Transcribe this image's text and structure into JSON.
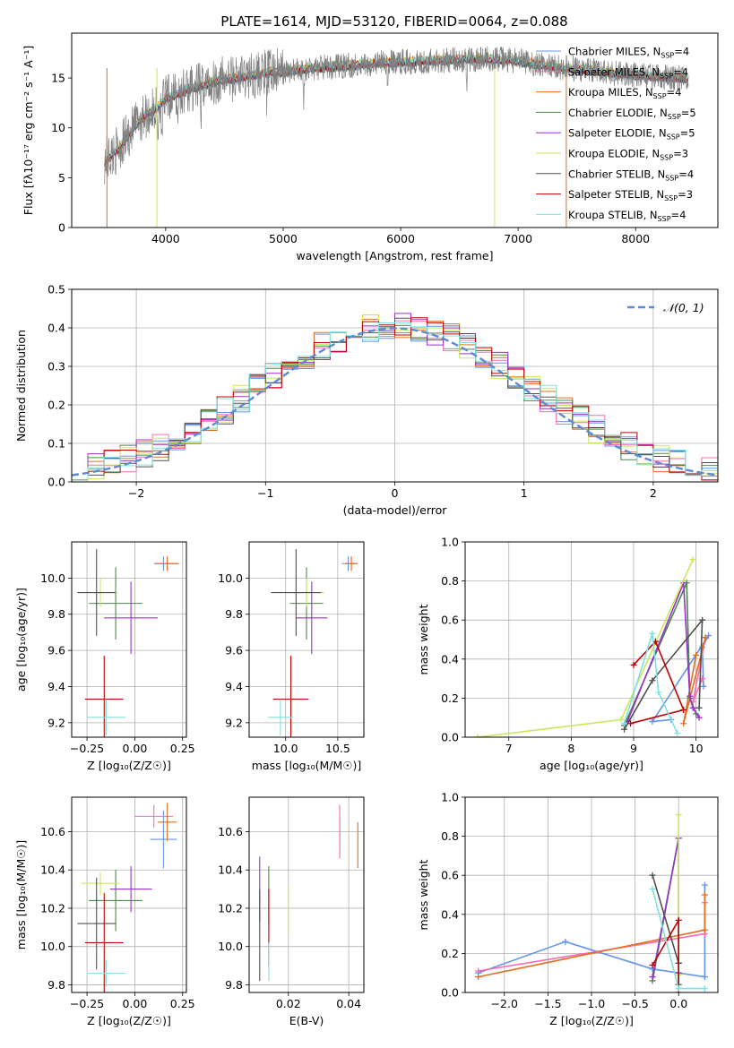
{
  "figure": {
    "title": "PLATE=1614, MJD=53120, FIBERID=0064, z=0.088"
  },
  "chart_data": [
    {
      "id": "spectrum",
      "type": "line",
      "xlabel": "wavelength [Angstrom, rest frame]",
      "ylabel": "Flux [fλ10⁻¹⁷ erg cm⁻² s⁻¹ A⁻¹]",
      "xlim": [
        3200,
        8700
      ],
      "ylim": [
        0,
        19.5
      ],
      "xticks": [
        4000,
        5000,
        6000,
        7000,
        8000
      ],
      "yticks": [
        0,
        5,
        10,
        15
      ],
      "grid": false,
      "legend_position": "right",
      "data_curve": {
        "name": "data",
        "color": "#808080",
        "x": [
          3480,
          3600,
          3700,
          3800,
          3900,
          4000,
          4100,
          4200,
          4300,
          4400,
          4500,
          4600,
          4700,
          4800,
          4900,
          5000,
          5200,
          5400,
          5600,
          5800,
          6000,
          6200,
          6400,
          6600,
          6800,
          7000,
          7200,
          7400,
          7600,
          7800,
          8000,
          8200,
          8400
        ],
        "y": [
          6.7,
          7.9,
          9.6,
          11.1,
          11.7,
          12.9,
          13.4,
          13.9,
          14.2,
          14.6,
          14.9,
          15.0,
          15.2,
          15.4,
          15.6,
          15.6,
          15.9,
          16.1,
          16.3,
          16.5,
          16.6,
          16.7,
          16.8,
          16.9,
          16.9,
          16.7,
          16.3,
          16.0,
          15.8,
          15.5,
          15.3,
          15.1,
          15.0
        ]
      },
      "series": [
        {
          "name": "Chabrier MILES, N",
          "sub": "SSP",
          "suffix": "=4",
          "color": "#6495ed"
        },
        {
          "name": "Salpeter MILES, N",
          "sub": "SSP",
          "suffix": "=4",
          "color": "#ff69b4"
        },
        {
          "name": "Kroupa MILES, N",
          "sub": "SSP",
          "suffix": "=4",
          "color": "#e07020"
        },
        {
          "name": "Chabrier ELODIE, N",
          "sub": "SSP",
          "suffix": "=5",
          "color": "#4a8a4a"
        },
        {
          "name": "Salpeter ELODIE, N",
          "sub": "SSP",
          "suffix": "=5",
          "color": "#9932cc"
        },
        {
          "name": "Kroupa ELODIE, N",
          "sub": "SSP",
          "suffix": "=3",
          "color": "#c8e85a"
        },
        {
          "name": "Chabrier STELIB, N",
          "sub": "SSP",
          "suffix": "=4",
          "color": "#505050"
        },
        {
          "name": "Salpeter STELIB, N",
          "sub": "SSP",
          "suffix": "=3",
          "color": "#c00000"
        },
        {
          "name": "Kroupa STELIB, N",
          "sub": "SSP",
          "suffix": "=4",
          "color": "#80e0e0"
        }
      ]
    },
    {
      "id": "residuals",
      "type": "histogram",
      "xlabel": "(data-model)/error",
      "ylabel": "Normed distribution",
      "xlim": [
        -2.5,
        2.5
      ],
      "ylim": [
        0,
        0.5
      ],
      "xticks": [
        -2,
        -1,
        0,
        1,
        2
      ],
      "yticks": [
        0.0,
        0.1,
        0.2,
        0.3,
        0.4,
        0.5
      ],
      "grid": true,
      "legend": {
        "label": "𝒩(0, 1)",
        "position": "top-right",
        "color": "#5b8bd6"
      },
      "bins": [
        -2.5,
        -2.375,
        -2.25,
        -2.125,
        -2.0,
        -1.875,
        -1.75,
        -1.625,
        -1.5,
        -1.375,
        -1.25,
        -1.125,
        -1.0,
        -0.875,
        -0.75,
        -0.625,
        -0.5,
        -0.375,
        -0.25,
        -0.125,
        0.0,
        0.125,
        0.25,
        0.375,
        0.5,
        0.625,
        0.75,
        0.875,
        1.0,
        1.125,
        1.25,
        1.375,
        1.5,
        1.625,
        1.75,
        1.875,
        2.0,
        2.125,
        2.25,
        2.375,
        2.5
      ]
    },
    {
      "id": "age-vs-Z",
      "type": "scatter",
      "xlabel": "Z [log₁₀(Z/Z☉)]",
      "ylabel": "age  [log₁₀(age/yr)]",
      "xlim": [
        -0.33,
        0.27
      ],
      "ylim": [
        9.12,
        10.2
      ],
      "xticks": [
        -0.25,
        0.0,
        0.25
      ],
      "yticks": [
        9.2,
        9.4,
        9.6,
        9.8,
        10.0
      ],
      "points": [
        {
          "x": 0.15,
          "y": 10.08,
          "xerr": 0.05,
          "yerr": 0.04,
          "color": "#6495ed"
        },
        {
          "x": 0.17,
          "y": 10.08,
          "xerr": 0.06,
          "yerr": 0.04,
          "color": "#ff69b4"
        },
        {
          "x": 0.17,
          "y": 10.08,
          "xerr": 0.06,
          "yerr": 0.04,
          "color": "#e07020"
        },
        {
          "x": -0.1,
          "y": 9.86,
          "xerr": 0.14,
          "yerr": 0.2,
          "color": "#4a8a4a"
        },
        {
          "x": -0.02,
          "y": 9.78,
          "xerr": 0.14,
          "yerr": 0.2,
          "color": "#9932cc"
        },
        {
          "x": -0.18,
          "y": 9.92,
          "xerr": 0.09,
          "yerr": 0.08,
          "color": "#c8e85a"
        },
        {
          "x": -0.2,
          "y": 9.92,
          "xerr": 0.1,
          "yerr": 0.24,
          "color": "#505050"
        },
        {
          "x": -0.16,
          "y": 9.33,
          "xerr": 0.1,
          "yerr": 0.24,
          "color": "#c00000"
        },
        {
          "x": -0.15,
          "y": 9.23,
          "xerr": 0.1,
          "yerr": 0.1,
          "color": "#80e0e0"
        }
      ]
    },
    {
      "id": "age-vs-mass",
      "type": "scatter",
      "xlabel": "mass [log₁₀(M/M☉)]",
      "ylabel": "",
      "xlim": [
        9.65,
        10.75
      ],
      "ylim": [
        9.12,
        10.2
      ],
      "xticks": [
        10.0,
        10.5
      ],
      "yticks": [
        9.2,
        9.4,
        9.6,
        9.8,
        10.0
      ],
      "points": [
        {
          "x": 10.6,
          "y": 10.08,
          "xerr": 0.06,
          "yerr": 0.04,
          "color": "#6495ed"
        },
        {
          "x": 10.63,
          "y": 10.08,
          "xerr": 0.06,
          "yerr": 0.04,
          "color": "#ff69b4"
        },
        {
          "x": 10.63,
          "y": 10.08,
          "xerr": 0.06,
          "yerr": 0.04,
          "color": "#e07020"
        },
        {
          "x": 10.2,
          "y": 9.86,
          "xerr": 0.16,
          "yerr": 0.2,
          "color": "#4a8a4a"
        },
        {
          "x": 10.25,
          "y": 9.78,
          "xerr": 0.15,
          "yerr": 0.2,
          "color": "#9932cc"
        },
        {
          "x": 10.2,
          "y": 9.92,
          "xerr": 0.17,
          "yerr": 0.08,
          "color": "#c8e85a"
        },
        {
          "x": 10.1,
          "y": 9.92,
          "xerr": 0.24,
          "yerr": 0.24,
          "color": "#505050"
        },
        {
          "x": 10.05,
          "y": 9.33,
          "xerr": 0.17,
          "yerr": 0.24,
          "color": "#c00000"
        },
        {
          "x": 9.95,
          "y": 9.23,
          "xerr": 0.12,
          "yerr": 0.1,
          "color": "#80e0e0"
        }
      ]
    },
    {
      "id": "weight-vs-age",
      "type": "line",
      "xlabel": "age  [log₁₀(age/yr)]",
      "ylabel": "mass weight",
      "xlim": [
        6.3,
        10.35
      ],
      "ylim": [
        0,
        1.0
      ],
      "xticks": [
        7,
        8,
        9,
        10
      ],
      "yticks": [
        0.0,
        0.2,
        0.4,
        0.6,
        0.8,
        1.0
      ],
      "grid": true,
      "series": [
        {
          "color": "#6495ed",
          "x": [
            10.12,
            10.1,
            10.2,
            9.3,
            9.6
          ],
          "y": [
            0.26,
            0.46,
            0.52,
            0.08,
            0.09
          ]
        },
        {
          "color": "#ff69b4",
          "x": [
            10.1,
            9.95,
            10.15
          ],
          "y": [
            0.3,
            0.18,
            0.51
          ]
        },
        {
          "color": "#e07020",
          "x": [
            10.15,
            9.8,
            10.0
          ],
          "y": [
            0.51,
            0.07,
            0.42
          ]
        },
        {
          "color": "#4a8a4a",
          "x": [
            8.85,
            9.85,
            9.9,
            10.0
          ],
          "y": [
            0.06,
            0.79,
            0.2,
            0.12
          ]
        },
        {
          "color": "#9932cc",
          "x": [
            8.9,
            9.8,
            9.9,
            9.95,
            10.05
          ],
          "y": [
            0.08,
            0.79,
            0.21,
            0.15,
            0.1
          ]
        },
        {
          "color": "#c8e85a",
          "x": [
            6.5,
            8.8,
            9.95
          ],
          "y": [
            0.0,
            0.09,
            0.91
          ]
        },
        {
          "color": "#505050",
          "x": [
            8.85,
            9.3,
            10.1,
            10.05
          ],
          "y": [
            0.04,
            0.29,
            0.6,
            0.15
          ]
        },
        {
          "color": "#c00000",
          "x": [
            9.0,
            9.35,
            9.8,
            8.95
          ],
          "y": [
            0.37,
            0.49,
            0.14,
            0.07
          ]
        },
        {
          "color": "#80e0e0",
          "x": [
            8.85,
            9.3,
            9.4,
            9.7
          ],
          "y": [
            0.07,
            0.53,
            0.23,
            0.02
          ]
        }
      ]
    },
    {
      "id": "mass-vs-Z",
      "type": "scatter",
      "xlabel": "Z [log₁₀(Z/Z☉)]",
      "ylabel": "mass [log₁₀(M/M☉)]",
      "xlim": [
        -0.33,
        0.27
      ],
      "ylim": [
        9.76,
        10.78
      ],
      "xticks": [
        -0.25,
        0.0,
        0.25
      ],
      "yticks": [
        9.8,
        10.0,
        10.2,
        10.4,
        10.6
      ],
      "points": [
        {
          "x": 0.15,
          "y": 10.56,
          "xerr": 0.07,
          "yerr": 0.15,
          "color": "#6495ed"
        },
        {
          "x": 0.1,
          "y": 10.68,
          "xerr": 0.1,
          "yerr": 0.06,
          "color": "#ff69b4"
        },
        {
          "x": 0.17,
          "y": 10.65,
          "xerr": 0.05,
          "yerr": 0.1,
          "color": "#e07020"
        },
        {
          "x": -0.1,
          "y": 10.24,
          "xerr": 0.14,
          "yerr": 0.16,
          "color": "#4a8a4a"
        },
        {
          "x": -0.02,
          "y": 10.3,
          "xerr": 0.11,
          "yerr": 0.12,
          "color": "#9932cc"
        },
        {
          "x": -0.18,
          "y": 10.33,
          "xerr": 0.1,
          "yerr": 0.06,
          "color": "#c8e85a"
        },
        {
          "x": -0.2,
          "y": 10.12,
          "xerr": 0.1,
          "yerr": 0.24,
          "color": "#505050"
        },
        {
          "x": -0.16,
          "y": 10.02,
          "xerr": 0.1,
          "yerr": 0.26,
          "color": "#c00000"
        },
        {
          "x": -0.15,
          "y": 9.86,
          "xerr": 0.1,
          "yerr": 0.07,
          "color": "#80e0e0"
        }
      ]
    },
    {
      "id": "mass-vs-EBV",
      "type": "scatter",
      "xlabel": "E(B-V)",
      "ylabel": "",
      "xlim": [
        0.007,
        0.045
      ],
      "ylim": [
        9.76,
        10.78
      ],
      "xticks": [
        0.02,
        0.04
      ],
      "yticks": [
        9.8,
        10.0,
        10.2,
        10.4,
        10.6
      ],
      "points": [
        {
          "x": 0.037,
          "y": 10.56,
          "yerr": 0.1,
          "color": "#6495ed"
        },
        {
          "x": 0.037,
          "y": 10.6,
          "yerr": 0.14,
          "color": "#ff69b4"
        },
        {
          "x": 0.043,
          "y": 10.53,
          "yerr": 0.12,
          "color": "#e07020"
        },
        {
          "x": 0.0135,
          "y": 10.27,
          "yerr": 0.15,
          "color": "#4a8a4a"
        },
        {
          "x": 0.0105,
          "y": 10.3,
          "yerr": 0.17,
          "color": "#9932cc"
        },
        {
          "x": 0.02,
          "y": 10.19,
          "yerr": 0.14,
          "color": "#c8e85a"
        },
        {
          "x": 0.0105,
          "y": 10.06,
          "yerr": 0.24,
          "color": "#505050"
        },
        {
          "x": 0.0135,
          "y": 10.1,
          "yerr": 0.2,
          "color": "#c00000"
        },
        {
          "x": 0.0135,
          "y": 9.92,
          "yerr": 0.1,
          "color": "#80e0e0"
        }
      ]
    },
    {
      "id": "weight-vs-Z",
      "type": "line",
      "xlabel": "Z [log₁₀(Z/Z☉)]",
      "ylabel": "mass weight",
      "xlim": [
        -2.45,
        0.45
      ],
      "ylim": [
        0,
        1.0
      ],
      "xticks": [
        -2.0,
        -1.5,
        -1.0,
        -0.5,
        0.0
      ],
      "yticks": [
        0.0,
        0.2,
        0.4,
        0.6,
        0.8,
        1.0
      ],
      "grid": true,
      "series": [
        {
          "color": "#6495ed",
          "x": [
            -2.3,
            -1.3,
            -0.3,
            0.3,
            0.3
          ],
          "y": [
            0.1,
            0.26,
            0.12,
            0.08,
            0.55
          ]
        },
        {
          "color": "#ff69b4",
          "x": [
            -2.3,
            0.3,
            0.3
          ],
          "y": [
            0.11,
            0.3,
            0.46
          ]
        },
        {
          "color": "#e07020",
          "x": [
            -2.3,
            0.3,
            0.3
          ],
          "y": [
            0.08,
            0.32,
            0.5
          ]
        },
        {
          "color": "#4a8a4a",
          "x": [
            -0.3,
            0.0,
            0.0
          ],
          "y": [
            0.06,
            0.79,
            0.15
          ]
        },
        {
          "color": "#9932cc",
          "x": [
            -0.3,
            0.0,
            0.0
          ],
          "y": [
            0.08,
            0.79,
            0.1
          ]
        },
        {
          "color": "#c8e85a",
          "x": [
            0.0,
            0.0,
            0.0
          ],
          "y": [
            0.91,
            0.09,
            0.0
          ]
        },
        {
          "color": "#505050",
          "x": [
            -0.3,
            0.0,
            0.0
          ],
          "y": [
            0.6,
            0.15,
            0.04
          ]
        },
        {
          "color": "#c00000",
          "x": [
            -0.3,
            0.0,
            0.0
          ],
          "y": [
            0.14,
            0.37,
            0.0
          ]
        },
        {
          "color": "#80e0e0",
          "x": [
            -0.3,
            0.0,
            0.3
          ],
          "y": [
            0.53,
            0.02,
            0.02
          ]
        }
      ]
    }
  ]
}
